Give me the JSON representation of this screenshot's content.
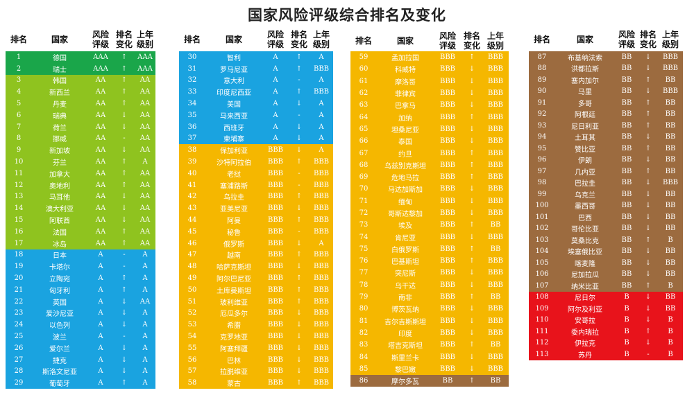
{
  "title": "国家风险评级综合排名及变化",
  "headers": {
    "rank": "排名",
    "country": "国家",
    "rating": "风险\n评级",
    "change": "排名\n变化",
    "last": "上年\n级别"
  },
  "colors": {
    "AAA": "#1aa64a",
    "AA": "#8fc31f",
    "A": "#1aa3e0",
    "BBB": "#f5b700",
    "BB": "#9c6b3f",
    "B": "#e8131b"
  },
  "tables": [
    {
      "rows": [
        [
          "1",
          "德国",
          "AAA",
          "↑",
          "AAA"
        ],
        [
          "2",
          "瑞士",
          "AAA",
          "↑",
          "AAA"
        ],
        [
          "3",
          "韩国",
          "AA",
          "↑",
          "AA"
        ],
        [
          "4",
          "新西兰",
          "AA",
          "↑",
          "AA"
        ],
        [
          "5",
          "丹麦",
          "AA",
          "↑",
          "AA"
        ],
        [
          "6",
          "瑞典",
          "AA",
          "↓",
          "AA"
        ],
        [
          "7",
          "荷兰",
          "AA",
          "↓",
          "AA"
        ],
        [
          "8",
          "挪威",
          "AA",
          "-",
          "AA"
        ],
        [
          "9",
          "新加坡",
          "AA",
          "↓",
          "AA"
        ],
        [
          "10",
          "芬兰",
          "AA",
          "↑",
          "A"
        ],
        [
          "11",
          "加拿大",
          "AA",
          "↑",
          "AA"
        ],
        [
          "12",
          "奥地利",
          "AA",
          "↑",
          "AA"
        ],
        [
          "13",
          "马耳他",
          "AA",
          "↓",
          "AA"
        ],
        [
          "14",
          "澳大利亚",
          "AA",
          "↓",
          "AA"
        ],
        [
          "15",
          "阿联酋",
          "AA",
          "↓",
          "AA"
        ],
        [
          "16",
          "法国",
          "AA",
          "↑",
          "AA"
        ],
        [
          "17",
          "冰岛",
          "AA",
          "↑",
          "AA"
        ],
        [
          "18",
          "日本",
          "A",
          "-",
          "A"
        ],
        [
          "19",
          "卡塔尔",
          "A",
          "-",
          "A"
        ],
        [
          "20",
          "立陶宛",
          "A",
          "↑",
          "A"
        ],
        [
          "21",
          "匈牙利",
          "A",
          "↑",
          "A"
        ],
        [
          "22",
          "英国",
          "A",
          "↓",
          "AA"
        ],
        [
          "23",
          "爱沙尼亚",
          "A",
          "↓",
          "A"
        ],
        [
          "24",
          "以色列",
          "A",
          "↓",
          "A"
        ],
        [
          "25",
          "波兰",
          "A",
          "-",
          "A"
        ],
        [
          "26",
          "爱尔兰",
          "A",
          "↓",
          "A"
        ],
        [
          "27",
          "捷克",
          "A",
          "↓",
          "A"
        ],
        [
          "28",
          "斯洛文尼亚",
          "A",
          "↓",
          "A"
        ],
        [
          "29",
          "葡萄牙",
          "A",
          "↑",
          "A"
        ]
      ]
    },
    {
      "rows": [
        [
          "30",
          "智利",
          "A",
          "↑",
          "A"
        ],
        [
          "31",
          "罗马尼亚",
          "A",
          "↑",
          "BBB"
        ],
        [
          "32",
          "意大利",
          "A",
          "-",
          "A"
        ],
        [
          "33",
          "印度尼西亚",
          "A",
          "↑",
          "BBB"
        ],
        [
          "34",
          "美国",
          "A",
          "↓",
          "A"
        ],
        [
          "35",
          "马来西亚",
          "A",
          "-",
          "A"
        ],
        [
          "36",
          "西班牙",
          "A",
          "↓",
          "A"
        ],
        [
          "37",
          "柬埔寨",
          "A",
          "↓",
          "A"
        ],
        [
          "38",
          "保加利亚",
          "BBB",
          "↓",
          "A"
        ],
        [
          "39",
          "沙特阿拉伯",
          "BBB",
          "↑",
          "BBB"
        ],
        [
          "40",
          "老挝",
          "BBB",
          "-",
          "BBB"
        ],
        [
          "41",
          "塞浦路斯",
          "BBB",
          "-",
          "BBB"
        ],
        [
          "42",
          "乌拉圭",
          "BBB",
          "↑",
          "BBB"
        ],
        [
          "43",
          "亚美尼亚",
          "BBB",
          "↓",
          "BBB"
        ],
        [
          "44",
          "阿曼",
          "BBB",
          "↑",
          "BBB"
        ],
        [
          "45",
          "秘鲁",
          "BBB",
          "-",
          "BBB"
        ],
        [
          "46",
          "俄罗斯",
          "BBB",
          "↓",
          "A"
        ],
        [
          "47",
          "越南",
          "BBB",
          "↑",
          "BBB"
        ],
        [
          "48",
          "哈萨克斯坦",
          "BBB",
          "↓",
          "BBB"
        ],
        [
          "49",
          "阿尔巴尼亚",
          "BBB",
          "↑",
          "BBB"
        ],
        [
          "50",
          "土库曼斯坦",
          "BBB",
          "↑",
          "BBB"
        ],
        [
          "51",
          "玻利维亚",
          "BBB",
          "↑",
          "BBB"
        ],
        [
          "52",
          "厄瓜多尔",
          "BBB",
          "↓",
          "BBB"
        ],
        [
          "53",
          "希腊",
          "BBB",
          "↓",
          "BBB"
        ],
        [
          "54",
          "克罗地亚",
          "BBB",
          "↓",
          "BBB"
        ],
        [
          "55",
          "阿塞拜疆",
          "BBB",
          "↓",
          "BBB"
        ],
        [
          "56",
          "巴林",
          "BBB",
          "↓",
          "BBB"
        ],
        [
          "57",
          "拉脱维亚",
          "BBB",
          "↓",
          "BBB"
        ],
        [
          "58",
          "蒙古",
          "BBB",
          "↑",
          "BBB"
        ]
      ]
    },
    {
      "rows": [
        [
          "59",
          "孟加拉国",
          "BBB",
          "↑",
          "BBB"
        ],
        [
          "60",
          "科威特",
          "BBB",
          "↓",
          "BBB"
        ],
        [
          "61",
          "摩洛哥",
          "BBB",
          "↓",
          "BBB"
        ],
        [
          "62",
          "菲律宾",
          "BBB",
          "↓",
          "BBB"
        ],
        [
          "63",
          "巴拿马",
          "BBB",
          "↓",
          "BBB"
        ],
        [
          "64",
          "加纳",
          "BBB",
          "↑",
          "BBB"
        ],
        [
          "65",
          "坦桑尼亚",
          "BBB",
          "↓",
          "BBB"
        ],
        [
          "66",
          "泰国",
          "BBB",
          "↓",
          "BBB"
        ],
        [
          "67",
          "约旦",
          "BBB",
          "↑",
          "BBB"
        ],
        [
          "68",
          "乌兹别克斯坦",
          "BBB",
          "↑",
          "BBB"
        ],
        [
          "69",
          "危地马拉",
          "BBB",
          "↑",
          "BBB"
        ],
        [
          "70",
          "马达加斯加",
          "BBB",
          "↓",
          "BBB"
        ],
        [
          "71",
          "缅甸",
          "BBB",
          "↓",
          "BBB"
        ],
        [
          "72",
          "哥斯达黎加",
          "BBB",
          "↓",
          "BBB"
        ],
        [
          "73",
          "埃及",
          "BBB",
          "↑",
          "BB"
        ],
        [
          "74",
          "肯尼亚",
          "BBB",
          "↓",
          "BBB"
        ],
        [
          "75",
          "白俄罗斯",
          "BBB",
          "↑",
          "BB"
        ],
        [
          "76",
          "巴基斯坦",
          "BBB",
          "↑",
          "BBB"
        ],
        [
          "77",
          "突尼斯",
          "BBB",
          "↓",
          "BBB"
        ],
        [
          "78",
          "乌干达",
          "BBB",
          "↓",
          "BBB"
        ],
        [
          "79",
          "南非",
          "BBB",
          "↑",
          "BB"
        ],
        [
          "80",
          "博茨瓦纳",
          "BBB",
          "↓",
          "BBB"
        ],
        [
          "81",
          "吉尔吉斯斯坦",
          "BBB",
          "↓",
          "BBB"
        ],
        [
          "82",
          "印度",
          "BBB",
          "↓",
          "BBB"
        ],
        [
          "83",
          "塔吉克斯坦",
          "BBB",
          "↑",
          "BB"
        ],
        [
          "84",
          "斯里兰卡",
          "BBB",
          "↓",
          "BBB"
        ],
        [
          "85",
          "黎巴嫩",
          "BBB",
          "↓",
          "BBB"
        ],
        [
          "86",
          "摩尔多瓦",
          "BB",
          "↑",
          "BB"
        ]
      ]
    },
    {
      "rows": [
        [
          "87",
          "布基纳法索",
          "BB",
          "↓",
          "BBB"
        ],
        [
          "88",
          "洪都拉斯",
          "BB",
          "↓",
          "BBB"
        ],
        [
          "89",
          "塞内加尔",
          "BB",
          "↑",
          "BB"
        ],
        [
          "90",
          "马里",
          "BB",
          "↓",
          "BBB"
        ],
        [
          "91",
          "多哥",
          "BB",
          "↑",
          "BB"
        ],
        [
          "92",
          "阿根廷",
          "BB",
          "↑",
          "BB"
        ],
        [
          "93",
          "尼日利亚",
          "BB",
          "↑",
          "BB"
        ],
        [
          "94",
          "土耳其",
          "BB",
          "↓",
          "BB"
        ],
        [
          "95",
          "赞比亚",
          "BB",
          "↑",
          "BB"
        ],
        [
          "96",
          "伊朗",
          "BB",
          "↓",
          "BB"
        ],
        [
          "97",
          "几内亚",
          "BB",
          "↑",
          "BB"
        ],
        [
          "98",
          "巴拉圭",
          "BB",
          "↓",
          "BBB"
        ],
        [
          "99",
          "乌克兰",
          "BB",
          "↓",
          "BB"
        ],
        [
          "100",
          "墨西哥",
          "BB",
          "↓",
          "BB"
        ],
        [
          "101",
          "巴西",
          "BB",
          "↓",
          "BB"
        ],
        [
          "102",
          "哥伦比亚",
          "BB",
          "↓",
          "BB"
        ],
        [
          "103",
          "莫桑比克",
          "BB",
          "↑",
          "B"
        ],
        [
          "104",
          "埃塞俄比亚",
          "BB",
          "↓",
          "BB"
        ],
        [
          "105",
          "喀麦隆",
          "BB",
          "↓",
          "BB"
        ],
        [
          "106",
          "尼加拉瓜",
          "BB",
          "↓",
          "BB"
        ],
        [
          "107",
          "纳米比亚",
          "BB",
          "↑",
          "B"
        ],
        [
          "108",
          "尼日尔",
          "B",
          "↓",
          "BB"
        ],
        [
          "109",
          "阿尔及利亚",
          "B",
          "↓",
          "BB"
        ],
        [
          "110",
          "安哥拉",
          "B",
          "↓",
          "B"
        ],
        [
          "111",
          "委内瑞拉",
          "B",
          "↑",
          "B"
        ],
        [
          "112",
          "伊拉克",
          "B",
          "↓",
          "B"
        ],
        [
          "113",
          "苏丹",
          "B",
          "-",
          "B"
        ]
      ]
    }
  ]
}
